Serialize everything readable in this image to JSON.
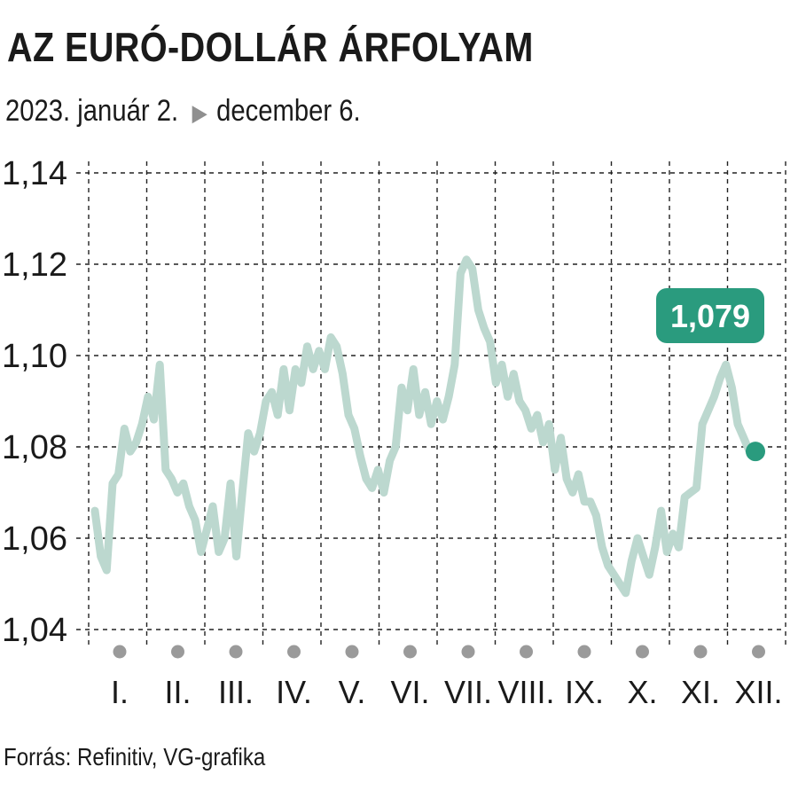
{
  "title": "AZ EURÓ-DOLLÁR ÁRFOLYAM",
  "subtitle_start": "2023. január 2.",
  "subtitle_end": "december 6.",
  "source": "Forrás: Refinitiv, VG-grafika",
  "colors": {
    "line": "#bcd8cf",
    "accent": "#2a9b7e",
    "marker": "#9a9a9a",
    "grid": "#222222"
  },
  "icons": {
    "arrow": "play-triangle-icon"
  },
  "chart_data": {
    "type": "line",
    "title": "AZ EURÓ-DOLLÁR ÁRFOLYAM",
    "ylim": [
      1.04,
      1.14
    ],
    "yticks": [
      "1,04",
      "1,06",
      "1,08",
      "1,10",
      "1,12",
      "1,14"
    ],
    "ytick_values": [
      1.04,
      1.06,
      1.08,
      1.1,
      1.12,
      1.14
    ],
    "months": [
      "I.",
      "II.",
      "III.",
      "IV.",
      "V.",
      "VI.",
      "VII.",
      "VIII.",
      "IX.",
      "X.",
      "XI.",
      "XII."
    ],
    "grid": true,
    "last_value_label": "1,079",
    "series": [
      {
        "values": [
          1.066,
          1.056,
          1.053,
          1.072,
          1.074,
          1.084,
          1.079,
          1.081,
          1.085,
          1.091,
          1.086,
          1.098,
          1.075,
          1.073,
          1.07,
          1.072,
          1.067,
          1.064,
          1.057,
          1.062,
          1.067,
          1.057,
          1.06,
          1.072,
          1.056,
          1.07,
          1.083,
          1.079,
          1.083,
          1.09,
          1.092,
          1.087,
          1.097,
          1.088,
          1.097,
          1.094,
          1.102,
          1.097,
          1.101,
          1.097,
          1.104,
          1.102,
          1.096,
          1.087,
          1.084,
          1.078,
          1.073,
          1.071,
          1.075,
          1.07,
          1.077,
          1.08,
          1.093,
          1.088,
          1.097,
          1.087,
          1.092,
          1.085,
          1.09,
          1.086,
          1.091,
          1.098,
          1.118,
          1.121,
          1.119,
          1.11,
          1.106,
          1.103,
          1.094,
          1.098,
          1.091,
          1.096,
          1.09,
          1.088,
          1.084,
          1.087,
          1.081,
          1.085,
          1.075,
          1.082,
          1.073,
          1.07,
          1.074,
          1.068,
          1.068,
          1.065,
          1.058,
          1.054,
          1.052,
          1.05,
          1.048,
          1.055,
          1.06,
          1.056,
          1.052,
          1.058,
          1.066,
          1.057,
          1.061,
          1.058,
          1.069,
          1.07,
          1.071,
          1.085,
          1.088,
          1.091,
          1.095,
          1.098,
          1.093,
          1.085,
          1.082,
          1.079,
          1.079
        ]
      }
    ]
  }
}
